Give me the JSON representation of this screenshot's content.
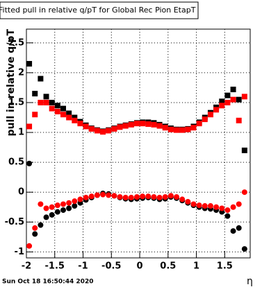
{
  "chart_data": {
    "type": "scatter",
    "title": "Fitted pull in relative q/pT for Global Rec Pion EtapT",
    "y_label": "pull in relative q/pT",
    "x_label": "η",
    "timestamp": "Sun Oct 18 16:50:44 2020",
    "xlim": [
      -2,
      1.95
    ],
    "ylim": [
      -1.1,
      2.73
    ],
    "xticks": [
      -2,
      -1.5,
      -1,
      -0.5,
      0,
      0.5,
      1,
      1.5
    ],
    "yticks": [
      -1,
      -0.5,
      0,
      0.5,
      1,
      1.5,
      2,
      2.5
    ],
    "grid": true,
    "x": [
      -1.95,
      -1.85,
      -1.75,
      -1.65,
      -1.55,
      -1.45,
      -1.35,
      -1.25,
      -1.15,
      -1.05,
      -0.95,
      -0.85,
      -0.75,
      -0.65,
      -0.55,
      -0.45,
      -0.35,
      -0.25,
      -0.15,
      -0.05,
      0.05,
      0.15,
      0.25,
      0.35,
      0.45,
      0.55,
      0.65,
      0.75,
      0.85,
      0.95,
      1.05,
      1.15,
      1.25,
      1.35,
      1.45,
      1.55,
      1.65,
      1.75,
      1.85
    ],
    "series": [
      {
        "color": "#000000",
        "marker": "square",
        "values": [
          2.15,
          1.65,
          1.9,
          1.6,
          1.5,
          1.45,
          1.4,
          1.32,
          1.25,
          1.18,
          1.12,
          1.07,
          1.04,
          1.02,
          1.04,
          1.07,
          1.1,
          1.12,
          1.14,
          1.16,
          1.17,
          1.17,
          1.16,
          1.13,
          1.1,
          1.07,
          1.05,
          1.05,
          1.06,
          1.1,
          1.17,
          1.25,
          1.33,
          1.42,
          1.52,
          1.62,
          1.72,
          1.55,
          0.7
        ]
      },
      {
        "color": "#ff0000",
        "marker": "square",
        "values": [
          1.1,
          1.3,
          1.5,
          1.5,
          1.4,
          1.35,
          1.3,
          1.25,
          1.2,
          1.15,
          1.1,
          1.06,
          1.03,
          1.01,
          1.03,
          1.06,
          1.09,
          1.11,
          1.13,
          1.15,
          1.15,
          1.14,
          1.13,
          1.11,
          1.08,
          1.05,
          1.04,
          1.04,
          1.05,
          1.08,
          1.15,
          1.22,
          1.3,
          1.38,
          1.45,
          1.5,
          1.55,
          1.2,
          1.6
        ]
      },
      {
        "color": "#000000",
        "marker": "circle",
        "values": [
          0.48,
          -0.7,
          -0.55,
          -0.42,
          -0.38,
          -0.33,
          -0.3,
          -0.27,
          -0.23,
          -0.18,
          -0.13,
          -0.09,
          -0.05,
          -0.02,
          -0.03,
          -0.06,
          -0.09,
          -0.11,
          -0.12,
          -0.11,
          -0.1,
          -0.09,
          -0.1,
          -0.12,
          -0.11,
          -0.08,
          -0.1,
          -0.14,
          -0.18,
          -0.22,
          -0.25,
          -0.27,
          -0.28,
          -0.3,
          -0.33,
          -0.4,
          -0.65,
          -0.6,
          -0.95
        ]
      },
      {
        "color": "#ff0000",
        "marker": "circle",
        "values": [
          -0.9,
          -0.6,
          -0.2,
          -0.27,
          -0.25,
          -0.22,
          -0.2,
          -0.18,
          -0.15,
          -0.12,
          -0.09,
          -0.07,
          -0.05,
          -0.04,
          -0.05,
          -0.06,
          -0.08,
          -0.09,
          -0.09,
          -0.08,
          -0.07,
          -0.07,
          -0.08,
          -0.09,
          -0.08,
          -0.06,
          -0.08,
          -0.12,
          -0.16,
          -0.2,
          -0.22,
          -0.23,
          -0.23,
          -0.25,
          -0.27,
          -0.3,
          -0.25,
          -0.2,
          0.0
        ]
      }
    ]
  }
}
